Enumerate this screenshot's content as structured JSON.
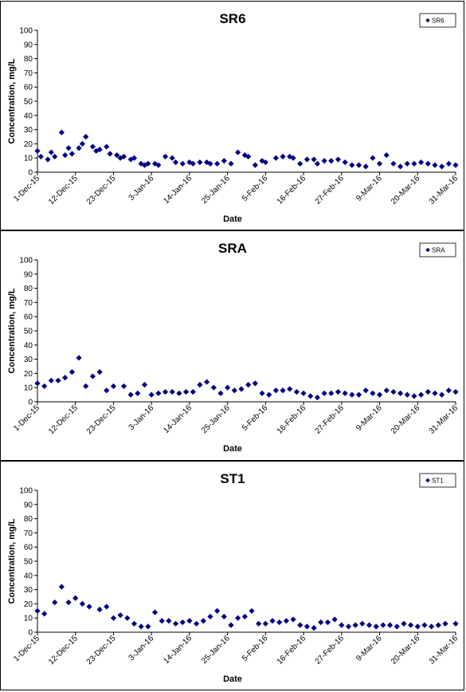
{
  "chart_data": [
    {
      "type": "scatter",
      "title": "SR6",
      "xlabel": "Date",
      "ylabel": "Concentration, mg/L",
      "ylim": [
        0,
        100
      ],
      "yticks": [
        0,
        10,
        20,
        30,
        40,
        50,
        60,
        70,
        80,
        90,
        100
      ],
      "xlim": [
        "2015-12-01",
        "2016-03-31"
      ],
      "xticks": [
        "1-Dec-15",
        "12-Dec-15",
        "23-Dec-15",
        "3-Jan-16",
        "14-Jan-16",
        "25-Jan-16",
        "5-Feb-16",
        "16-Feb-16",
        "27-Feb-16",
        "9-Mar-16",
        "20-Mar-16",
        "31-Mar-16"
      ],
      "grid": false,
      "legend_position": "top-right",
      "marker": "diamond",
      "series_color": "#000080",
      "series": [
        {
          "name": "SR6",
          "x": [
            "2015-12-01",
            "2015-12-02",
            "2015-12-04",
            "2015-12-05",
            "2015-12-06",
            "2015-12-08",
            "2015-12-09",
            "2015-12-10",
            "2015-12-11",
            "2015-12-13",
            "2015-12-14",
            "2015-12-15",
            "2015-12-17",
            "2015-12-18",
            "2015-12-19",
            "2015-12-21",
            "2015-12-22",
            "2015-12-24",
            "2015-12-25",
            "2015-12-26",
            "2015-12-28",
            "2015-12-29",
            "2015-12-31",
            "2016-01-01",
            "2016-01-02",
            "2016-01-04",
            "2016-01-05",
            "2016-01-07",
            "2016-01-09",
            "2016-01-10",
            "2016-01-12",
            "2016-01-14",
            "2016-01-15",
            "2016-01-17",
            "2016-01-19",
            "2016-01-20",
            "2016-01-22",
            "2016-01-24",
            "2016-01-26",
            "2016-01-28",
            "2016-01-30",
            "2016-01-31",
            "2016-02-02",
            "2016-02-04",
            "2016-02-05",
            "2016-02-08",
            "2016-02-10",
            "2016-02-12",
            "2016-02-13",
            "2016-02-15",
            "2016-02-17",
            "2016-02-19",
            "2016-02-20",
            "2016-02-22",
            "2016-02-24",
            "2016-02-26",
            "2016-02-28",
            "2016-03-01",
            "2016-03-03",
            "2016-03-05",
            "2016-03-07",
            "2016-03-09",
            "2016-03-11",
            "2016-03-13",
            "2016-03-15",
            "2016-03-17",
            "2016-03-19",
            "2016-03-21",
            "2016-03-23",
            "2016-03-25",
            "2016-03-27",
            "2016-03-29",
            "2016-03-31"
          ],
          "y": [
            15,
            11,
            9,
            14,
            11,
            28,
            12,
            17,
            13,
            17,
            20,
            25,
            18,
            15,
            16,
            18,
            13,
            12,
            10,
            11,
            9,
            10,
            6,
            5,
            6,
            6,
            5,
            11,
            10,
            7,
            6,
            7,
            6,
            7,
            7,
            6,
            6,
            8,
            6,
            14,
            12,
            11,
            5,
            8,
            7,
            10,
            11,
            11,
            10,
            6,
            9,
            9,
            6,
            8,
            8,
            9,
            7,
            5,
            5,
            4,
            10,
            6,
            12,
            6,
            4,
            6,
            6,
            7,
            6,
            5,
            4,
            6,
            5
          ]
        }
      ]
    },
    {
      "type": "scatter",
      "title": "SRA",
      "xlabel": "Date",
      "ylabel": "Concentration, mg/L",
      "ylim": [
        0,
        100
      ],
      "yticks": [
        0,
        10,
        20,
        30,
        40,
        50,
        60,
        70,
        80,
        90,
        100
      ],
      "xlim": [
        "2015-12-01",
        "2016-03-31"
      ],
      "xticks": [
        "1-Dec-15",
        "12-Dec-15",
        "23-Dec-15",
        "3-Jan-16",
        "14-Jan-16",
        "25-Jan-16",
        "5-Feb-16",
        "16-Feb-16",
        "27-Feb-16",
        "9-Mar-16",
        "20-Mar-16",
        "31-Mar-16"
      ],
      "grid": false,
      "legend_position": "top-right",
      "marker": "diamond",
      "series_color": "#000080",
      "series": [
        {
          "name": "SRA",
          "x": [
            "2015-12-01",
            "2015-12-03",
            "2015-12-05",
            "2015-12-07",
            "2015-12-09",
            "2015-12-11",
            "2015-12-13",
            "2015-12-15",
            "2015-12-17",
            "2015-12-19",
            "2015-12-21",
            "2015-12-23",
            "2015-12-26",
            "2015-12-28",
            "2015-12-30",
            "2016-01-01",
            "2016-01-03",
            "2016-01-05",
            "2016-01-07",
            "2016-01-09",
            "2016-01-11",
            "2016-01-13",
            "2016-01-15",
            "2016-01-17",
            "2016-01-19",
            "2016-01-21",
            "2016-01-23",
            "2016-01-25",
            "2016-01-27",
            "2016-01-29",
            "2016-01-31",
            "2016-02-02",
            "2016-02-04",
            "2016-02-06",
            "2016-02-08",
            "2016-02-10",
            "2016-02-12",
            "2016-02-14",
            "2016-02-16",
            "2016-02-18",
            "2016-02-20",
            "2016-02-22",
            "2016-02-24",
            "2016-02-26",
            "2016-02-28",
            "2016-03-01",
            "2016-03-03",
            "2016-03-05",
            "2016-03-07",
            "2016-03-09",
            "2016-03-11",
            "2016-03-13",
            "2016-03-15",
            "2016-03-17",
            "2016-03-19",
            "2016-03-21",
            "2016-03-23",
            "2016-03-25",
            "2016-03-27",
            "2016-03-29",
            "2016-03-31"
          ],
          "y": [
            13,
            11,
            15,
            15,
            17,
            21,
            31,
            11,
            18,
            21,
            8,
            11,
            11,
            5,
            6,
            12,
            5,
            6,
            7,
            7,
            6,
            7,
            7,
            12,
            14,
            10,
            6,
            10,
            8,
            9,
            12,
            13,
            6,
            5,
            8,
            8,
            9,
            7,
            6,
            4,
            3,
            6,
            6,
            7,
            6,
            5,
            5,
            8,
            6,
            5,
            8,
            7,
            6,
            5,
            4,
            5,
            7,
            6,
            5,
            8,
            7
          ]
        }
      ]
    },
    {
      "type": "scatter",
      "title": "ST1",
      "xlabel": "Date",
      "ylabel": "Concentration, mg/L",
      "ylim": [
        0,
        100
      ],
      "yticks": [
        0,
        10,
        20,
        30,
        40,
        50,
        60,
        70,
        80,
        90,
        100
      ],
      "xlim": [
        "2015-12-01",
        "2016-03-31"
      ],
      "xticks": [
        "1-Dec-15",
        "12-Dec-15",
        "23-Dec-15",
        "3-Jan-16",
        "14-Jan-16",
        "25-Jan-16",
        "5-Feb-16",
        "16-Feb-16",
        "27-Feb-16",
        "9-Mar-16",
        "20-Mar-16",
        "31-Mar-16"
      ],
      "grid": false,
      "legend_position": "top-right",
      "marker": "diamond",
      "series_color": "#000080",
      "series": [
        {
          "name": "ST1",
          "x": [
            "2015-12-01",
            "2015-12-03",
            "2015-12-06",
            "2015-12-08",
            "2015-12-10",
            "2015-12-12",
            "2015-12-14",
            "2015-12-16",
            "2015-12-19",
            "2015-12-21",
            "2015-12-23",
            "2015-12-25",
            "2015-12-27",
            "2015-12-29",
            "2015-12-31",
            "2016-01-02",
            "2016-01-04",
            "2016-01-06",
            "2016-01-08",
            "2016-01-10",
            "2016-01-12",
            "2016-01-14",
            "2016-01-16",
            "2016-01-18",
            "2016-01-20",
            "2016-01-22",
            "2016-01-24",
            "2016-01-26",
            "2016-01-28",
            "2016-01-30",
            "2016-02-01",
            "2016-02-03",
            "2016-02-05",
            "2016-02-07",
            "2016-02-09",
            "2016-02-11",
            "2016-02-13",
            "2016-02-15",
            "2016-02-17",
            "2016-02-19",
            "2016-02-21",
            "2016-02-23",
            "2016-02-25",
            "2016-02-27",
            "2016-02-29",
            "2016-03-02",
            "2016-03-04",
            "2016-03-06",
            "2016-03-08",
            "2016-03-10",
            "2016-03-12",
            "2016-03-14",
            "2016-03-16",
            "2016-03-18",
            "2016-03-20",
            "2016-03-22",
            "2016-03-24",
            "2016-03-26",
            "2016-03-28",
            "2016-03-31"
          ],
          "y": [
            15,
            13,
            21,
            32,
            21,
            24,
            20,
            18,
            16,
            18,
            10,
            12,
            10,
            6,
            4,
            4,
            14,
            8,
            8,
            6,
            7,
            8,
            6,
            8,
            11,
            15,
            11,
            5,
            10,
            11,
            15,
            6,
            6,
            8,
            7,
            8,
            9,
            5,
            4,
            3,
            7,
            7,
            9,
            5,
            4,
            5,
            6,
            5,
            4,
            5,
            5,
            4,
            6,
            5,
            4,
            5,
            4,
            5,
            6,
            6
          ]
        }
      ]
    }
  ]
}
